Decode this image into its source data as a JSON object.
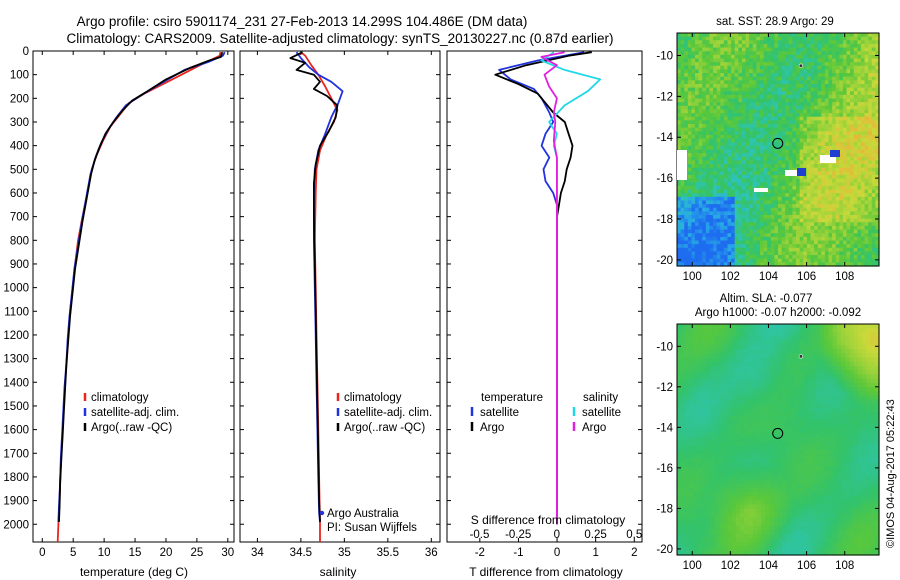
{
  "title_line1": "Argo profile: csiro 5901174_231 27-Feb-2013 14.299S 104.486E (DM data)",
  "title_line2": "Climatology: CARS2009. Satellite-adjusted climatology: synTS_20130227.nc (0.87d earlier)",
  "side_stamp": "©IMOS 04-Aug-2017 05:22:43",
  "colors": {
    "climatology": "#e8261f",
    "satellite": "#2233dd",
    "argo": "#000000",
    "sal_satellite": "#22d8e6",
    "sal_argo": "#e020e0"
  },
  "chart_data": [
    {
      "type": "line",
      "id": "temperature",
      "xlabel": "temperature (deg C)",
      "ylabel": "",
      "xlim": [
        -1.5,
        31
      ],
      "ylim": [
        2075,
        0
      ],
      "x_ticks": [
        "0",
        "5",
        "10",
        "15",
        "20",
        "25",
        "30"
      ],
      "y_ticks": [
        "0",
        "100",
        "200",
        "300",
        "400",
        "500",
        "600",
        "700",
        "800",
        "900",
        "1000",
        "1100",
        "1200",
        "1300",
        "1400",
        "1500",
        "1600",
        "1700",
        "1800",
        "1900",
        "2000"
      ],
      "legend": [
        "climatology",
        "satellite-adj. clim.",
        "Argo(..raw -QC)"
      ],
      "series": [
        {
          "name": "climatology",
          "points": [
            [
              28.8,
              5
            ],
            [
              28.7,
              20
            ],
            [
              25.5,
              60
            ],
            [
              21,
              120
            ],
            [
              16.5,
              180
            ],
            [
              14,
              220
            ],
            [
              12.5,
              270
            ],
            [
              11,
              320
            ],
            [
              9.8,
              380
            ],
            [
              8.8,
              440
            ],
            [
              8,
              500
            ],
            [
              7.3,
              600
            ],
            [
              6.5,
              700
            ],
            [
              5.8,
              800
            ],
            [
              5.3,
              900
            ],
            [
              4.9,
              1000
            ],
            [
              4.5,
              1100
            ],
            [
              4.2,
              1200
            ],
            [
              4,
              1300
            ],
            [
              3.7,
              1400
            ],
            [
              3.5,
              1500
            ],
            [
              3.3,
              1600
            ],
            [
              3.1,
              1700
            ],
            [
              2.9,
              1800
            ],
            [
              2.8,
              1900
            ],
            [
              2.6,
              2000
            ],
            [
              2.5,
              2075
            ]
          ]
        },
        {
          "name": "satellite-adj. clim.",
          "points": [
            [
              29.5,
              5
            ],
            [
              29.2,
              20
            ],
            [
              27,
              45
            ],
            [
              23,
              80
            ],
            [
              19,
              140
            ],
            [
              15.8,
              190
            ],
            [
              13.5,
              230
            ],
            [
              12,
              280
            ],
            [
              10.7,
              330
            ],
            [
              9.5,
              390
            ],
            [
              8.6,
              450
            ],
            [
              7.8,
              520
            ],
            [
              7.1,
              620
            ],
            [
              6.4,
              720
            ],
            [
              5.8,
              820
            ],
            [
              5.2,
              920
            ],
            [
              4.8,
              1020
            ],
            [
              4.4,
              1120
            ],
            [
              4.1,
              1220
            ],
            [
              3.9,
              1320
            ],
            [
              3.6,
              1420
            ],
            [
              3.4,
              1520
            ],
            [
              3.2,
              1620
            ],
            [
              3,
              1720
            ],
            [
              2.9,
              1820
            ],
            [
              2.7,
              1920
            ],
            [
              2.6,
              1990
            ]
          ]
        },
        {
          "name": "Argo(..raw -QC)",
          "points": [
            [
              29.1,
              5
            ],
            [
              29,
              15
            ],
            [
              28.9,
              25
            ],
            [
              27,
              40
            ],
            [
              24,
              70
            ],
            [
              20,
              120
            ],
            [
              17,
              170
            ],
            [
              14.5,
              210
            ],
            [
              13,
              250
            ],
            [
              11.5,
              300
            ],
            [
              10.2,
              350
            ],
            [
              9.2,
              410
            ],
            [
              8.5,
              460
            ],
            [
              7.9,
              520
            ],
            [
              7.2,
              620
            ],
            [
              6.5,
              720
            ],
            [
              5.9,
              820
            ],
            [
              5.3,
              920
            ],
            [
              4.9,
              1020
            ],
            [
              4.5,
              1120
            ],
            [
              4.2,
              1220
            ],
            [
              3.9,
              1320
            ],
            [
              3.7,
              1420
            ],
            [
              3.5,
              1520
            ],
            [
              3.3,
              1620
            ],
            [
              3.1,
              1720
            ],
            [
              2.9,
              1820
            ],
            [
              2.8,
              1920
            ],
            [
              2.7,
              1990
            ]
          ]
        }
      ]
    },
    {
      "type": "line",
      "id": "salinity",
      "xlabel": "salinity",
      "ylabel": "",
      "xlim": [
        33.8,
        36.1
      ],
      "ylim": [
        2075,
        0
      ],
      "x_ticks": [
        "34",
        "34.5",
        "35",
        "35.5",
        "36"
      ],
      "legend": [
        "climatology",
        "satellite-adj. clim.",
        "Argo(..raw -QC)"
      ],
      "annotation": [
        "Argo Australia",
        "PI: Susan Wijffels"
      ],
      "series": [
        {
          "name": "climatology",
          "points": [
            [
              34.5,
              5
            ],
            [
              34.55,
              20
            ],
            [
              34.62,
              60
            ],
            [
              34.7,
              100
            ],
            [
              34.78,
              150
            ],
            [
              34.85,
              200
            ],
            [
              34.92,
              250
            ],
            [
              34.88,
              300
            ],
            [
              34.8,
              350
            ],
            [
              34.72,
              420
            ],
            [
              34.68,
              500
            ],
            [
              34.67,
              600
            ],
            [
              34.66,
              800
            ],
            [
              34.67,
              1000
            ],
            [
              34.68,
              1200
            ],
            [
              34.69,
              1400
            ],
            [
              34.7,
              1600
            ],
            [
              34.71,
              1800
            ],
            [
              34.72,
              2000
            ],
            [
              34.72,
              2075
            ]
          ]
        },
        {
          "name": "satellite-adj. clim.",
          "points": [
            [
              34.45,
              5
            ],
            [
              34.5,
              30
            ],
            [
              34.6,
              70
            ],
            [
              34.7,
              100
            ],
            [
              34.85,
              130
            ],
            [
              34.98,
              170
            ],
            [
              34.93,
              220
            ],
            [
              34.85,
              280
            ],
            [
              34.78,
              350
            ],
            [
              34.7,
              420
            ],
            [
              34.66,
              500
            ],
            [
              34.65,
              600
            ],
            [
              34.65,
              800
            ],
            [
              34.66,
              1000
            ],
            [
              34.67,
              1200
            ],
            [
              34.68,
              1400
            ],
            [
              34.69,
              1600
            ],
            [
              34.7,
              1800
            ],
            [
              34.71,
              1950
            ],
            [
              34.72,
              1990
            ]
          ]
        },
        {
          "name": "Argo(..raw -QC)",
          "points": [
            [
              34.52,
              5
            ],
            [
              34.38,
              30
            ],
            [
              34.55,
              50
            ],
            [
              34.45,
              80
            ],
            [
              34.65,
              100
            ],
            [
              34.72,
              130
            ],
            [
              34.65,
              160
            ],
            [
              34.8,
              190
            ],
            [
              34.92,
              230
            ],
            [
              34.9,
              280
            ],
            [
              34.82,
              340
            ],
            [
              34.72,
              400
            ],
            [
              34.67,
              480
            ],
            [
              34.65,
              560
            ],
            [
              34.65,
              700
            ],
            [
              34.66,
              900
            ],
            [
              34.67,
              1100
            ],
            [
              34.68,
              1300
            ],
            [
              34.69,
              1500
            ],
            [
              34.7,
              1700
            ],
            [
              34.71,
              1900
            ],
            [
              34.72,
              1990
            ]
          ]
        }
      ]
    },
    {
      "type": "line",
      "id": "difference",
      "xlabel": "T difference from climatology",
      "x_ticks": [
        "-2",
        "-1",
        "0",
        "1",
        "2"
      ],
      "xlim": [
        -2.85,
        2.2
      ],
      "top_axis_label": "S difference from climatology",
      "top_ticks": [
        "-0.5",
        "-0.25",
        "0",
        "0.25",
        "0.5"
      ],
      "top_xlim": [
        -0.71,
        0.55
      ],
      "ylim": [
        2075,
        0
      ],
      "legend_temperature_title": "temperature",
      "legend_salinity_title": "salinity",
      "legend": [
        "satellite",
        "Argo"
      ],
      "series": [
        {
          "name": "temperature satellite",
          "points": [
            [
              0.7,
              5
            ],
            [
              -0.5,
              40
            ],
            [
              -1.5,
              80
            ],
            [
              -1.2,
              120
            ],
            [
              -0.6,
              160
            ],
            [
              -0.4,
              200
            ],
            [
              -0.2,
              260
            ],
            [
              -0.1,
              300
            ],
            [
              -0.3,
              350
            ],
            [
              -0.4,
              400
            ],
            [
              -0.2,
              450
            ],
            [
              -0.35,
              500
            ],
            [
              -0.3,
              550
            ],
            [
              -0.1,
              600
            ],
            [
              0,
              650
            ],
            [
              0,
              700
            ],
            [
              0,
              900
            ],
            [
              0,
              1100
            ],
            [
              0,
              1500
            ],
            [
              0,
              1900
            ],
            [
              0,
              2000
            ]
          ]
        },
        {
          "name": "temperature Argo",
          "points": [
            [
              0.9,
              5
            ],
            [
              0.3,
              20
            ],
            [
              -0.8,
              60
            ],
            [
              -1.6,
              100
            ],
            [
              -1.0,
              140
            ],
            [
              -0.5,
              180
            ],
            [
              -0.3,
              220
            ],
            [
              -0.1,
              260
            ],
            [
              0.2,
              300
            ],
            [
              0.3,
              350
            ],
            [
              0.4,
              400
            ],
            [
              0.35,
              450
            ],
            [
              0.25,
              500
            ],
            [
              0.2,
              550
            ],
            [
              0.1,
              600
            ],
            [
              0.05,
              650
            ],
            [
              0,
              700
            ],
            [
              0,
              900
            ],
            [
              0,
              1200
            ],
            [
              0,
              1600
            ],
            [
              0,
              2000
            ]
          ]
        },
        {
          "name": "salinity satellite",
          "points": [
            [
              -0.02,
              5
            ],
            [
              -0.1,
              40
            ],
            [
              0.05,
              80
            ],
            [
              0.28,
              120
            ],
            [
              0.2,
              170
            ],
            [
              0.05,
              230
            ],
            [
              -0.05,
              300
            ],
            [
              0,
              350
            ],
            [
              -0.02,
              400
            ],
            [
              0,
              450
            ],
            [
              0,
              500
            ],
            [
              0,
              700
            ],
            [
              0,
              900
            ],
            [
              0,
              1200
            ],
            [
              0,
              1500
            ],
            [
              0,
              1800
            ],
            [
              0,
              2000
            ]
          ]
        },
        {
          "name": "salinity Argo",
          "points": [
            [
              0.05,
              5
            ],
            [
              -0.1,
              25
            ],
            [
              0.0,
              60
            ],
            [
              -0.08,
              100
            ],
            [
              -0.05,
              150
            ],
            [
              0.0,
              200
            ],
            [
              -0.02,
              260
            ],
            [
              -0.01,
              300
            ],
            [
              -0.02,
              380
            ],
            [
              0,
              450
            ],
            [
              0,
              600
            ],
            [
              0,
              900
            ],
            [
              0,
              1200
            ],
            [
              0,
              1500
            ],
            [
              0,
              1800
            ],
            [
              0,
              2000
            ]
          ]
        }
      ]
    },
    {
      "type": "heatmap",
      "id": "sst_map",
      "title": "sat. SST: 28.9  Argo: 29",
      "xlim": [
        99.2,
        109.8
      ],
      "ylim": [
        -20.3,
        -8.9
      ],
      "x_ticks": [
        "100",
        "102",
        "104",
        "106",
        "108"
      ],
      "y_ticks": [
        "-10",
        "-12",
        "-14",
        "-16",
        "-18",
        "-20"
      ],
      "argo_position": [
        104.486,
        -14.299
      ]
    },
    {
      "type": "heatmap",
      "id": "sla_map",
      "title_line1": "Altim. SLA: -0.077",
      "title_line2": "Argo h1000: -0.07  h2000: -0.092",
      "xlim": [
        99.2,
        109.8
      ],
      "ylim": [
        -20.3,
        -8.9
      ],
      "x_ticks": [
        "100",
        "102",
        "104",
        "106",
        "108"
      ],
      "y_ticks": [
        "-10",
        "-12",
        "-14",
        "-16",
        "-18",
        "-20"
      ],
      "argo_position": [
        104.486,
        -14.299
      ]
    }
  ]
}
